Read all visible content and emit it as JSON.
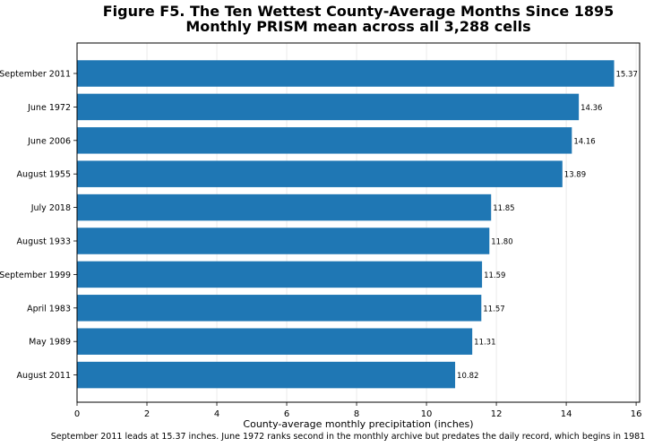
{
  "chart_data": {
    "type": "bar",
    "orientation": "horizontal",
    "title": "Figure F5. The Ten Wettest County-Average Months Since 1895",
    "subtitle": "Monthly PRISM mean across all 3,288 cells",
    "xlabel": "County-average monthly precipitation (inches)",
    "ylabel": "",
    "xlim": [
      0,
      16.1
    ],
    "xticks": [
      0,
      2,
      4,
      6,
      8,
      10,
      12,
      14,
      16
    ],
    "grid": "x",
    "categories": [
      "September 2011",
      "June 1972",
      "June 2006",
      "August 1955",
      "July 2018",
      "August 1933",
      "September 1999",
      "April 1983",
      "May 1989",
      "August 2011"
    ],
    "values": [
      15.37,
      14.36,
      14.16,
      13.89,
      11.85,
      11.8,
      11.59,
      11.57,
      11.31,
      10.82
    ],
    "value_labels": [
      "15.37",
      "14.36",
      "14.16",
      "13.89",
      "11.85",
      "11.80",
      "11.59",
      "11.57",
      "11.31",
      "10.82"
    ],
    "bar_color": "#1f77b4",
    "caption": "September 2011 leads at 15.37 inches. June 1972 ranks second in the monthly archive but predates the daily record, which begins in 1981."
  }
}
